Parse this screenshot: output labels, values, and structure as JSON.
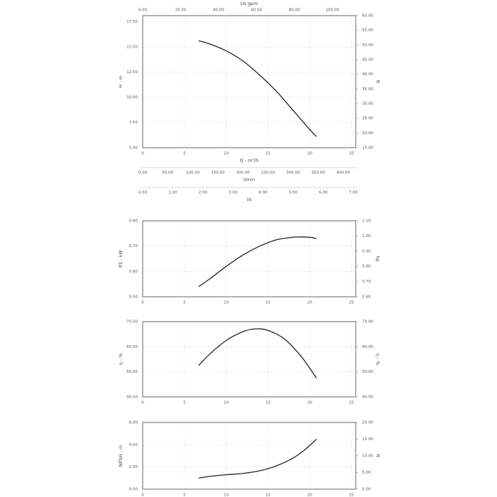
{
  "chart_data": [
    {
      "type": "line",
      "ylabel": "H - m",
      "y2label": "ft",
      "xlabel": "Q - m³/h",
      "x": [
        6.7,
        8,
        10,
        12,
        14,
        16,
        18,
        20,
        20.8
      ],
      "values": [
        15.6,
        15.3,
        14.6,
        13.6,
        12.2,
        10.6,
        8.7,
        6.8,
        6.1
      ],
      "color": "#222",
      "xlim": [
        0,
        25.5
      ],
      "xticks": [
        0,
        5,
        10,
        15,
        20,
        25
      ],
      "ylim": [
        5,
        18.1
      ],
      "yticks": [
        {
          "value": 5,
          "label": "5.00"
        },
        {
          "value": 7.5,
          "label": "7.50"
        },
        {
          "value": 10,
          "label": "10.00"
        },
        {
          "value": 12.5,
          "label": "12.50"
        },
        {
          "value": 15,
          "label": "15.00"
        },
        {
          "value": 17.5,
          "label": "17.50"
        }
      ],
      "y2lim": [
        15,
        60
      ],
      "y2ticks": [
        {
          "value": 15,
          "label": "15.00"
        },
        {
          "value": 20,
          "label": "20.00"
        },
        {
          "value": 25,
          "label": "25.00"
        },
        {
          "value": 30,
          "label": "30.00"
        },
        {
          "value": 35,
          "label": "35.00"
        },
        {
          "value": 40,
          "label": "40.00"
        },
        {
          "value": 45,
          "label": "45.00"
        },
        {
          "value": 50,
          "label": "50.00"
        },
        {
          "value": 55,
          "label": "55.00"
        },
        {
          "value": 60,
          "label": "60.00"
        }
      ],
      "x2label": "Us gpm",
      "x2lim": [
        0,
        112.3
      ],
      "x2ticks": [
        {
          "value": 0,
          "label": "0.00"
        },
        {
          "value": 20,
          "label": "20.00"
        },
        {
          "value": 40,
          "label": "40.00"
        },
        {
          "value": 60,
          "label": "60.00"
        },
        {
          "value": 80,
          "label": "80.00"
        },
        {
          "value": 100,
          "label": "100.00"
        }
      ],
      "extra_axes": [
        {
          "label": "l/min",
          "lim": [
            0,
            425
          ],
          "ticks": [
            {
              "value": 0,
              "label": "0.00"
            },
            {
              "value": 50,
              "label": "50.00"
            },
            {
              "value": 100,
              "label": "100.00"
            },
            {
              "value": 150,
              "label": "150.00"
            },
            {
              "value": 200,
              "label": "200.00"
            },
            {
              "value": 250,
              "label": "250.00"
            },
            {
              "value": 300,
              "label": "300.00"
            },
            {
              "value": 350,
              "label": "350.00"
            },
            {
              "value": 400,
              "label": "400.00"
            }
          ]
        },
        {
          "label": "l/s",
          "lim": [
            0,
            7.08
          ],
          "ticks": [
            {
              "value": 0,
              "label": "0.00"
            },
            {
              "value": 1,
              "label": "1.00"
            },
            {
              "value": 2,
              "label": "2.00"
            },
            {
              "value": 3,
              "label": "3.00"
            },
            {
              "value": 4,
              "label": "4.00"
            },
            {
              "value": 5,
              "label": "5.00"
            },
            {
              "value": 6,
              "label": "6.00"
            },
            {
              "value": 7,
              "label": "7.00"
            }
          ]
        }
      ]
    },
    {
      "type": "line",
      "ylabel": "P2 - kW",
      "y2label": "hp",
      "x": [
        6.7,
        8,
        10,
        12,
        14,
        16,
        18,
        19,
        20,
        20.8
      ],
      "values": [
        0.54,
        0.57,
        0.62,
        0.665,
        0.7,
        0.725,
        0.735,
        0.736,
        0.735,
        0.73
      ],
      "color": "#222",
      "xlim": [
        0,
        25.5
      ],
      "xticks": [
        0,
        5,
        10,
        15,
        20,
        25
      ],
      "ylim": [
        0.5,
        0.8
      ],
      "yticks": [
        {
          "value": 0.5,
          "label": "0.50"
        },
        {
          "value": 0.6,
          "label": "0.60"
        },
        {
          "value": 0.7,
          "label": "0.70"
        },
        {
          "value": 0.8,
          "label": "0.80"
        }
      ],
      "y2lim": [
        0.6,
        1.1
      ],
      "y2ticks": [
        {
          "value": 0.6,
          "label": "0.60"
        },
        {
          "value": 0.7,
          "label": "0.70"
        },
        {
          "value": 0.8,
          "label": "0.80"
        },
        {
          "value": 0.9,
          "label": "0.90"
        },
        {
          "value": 1.0,
          "label": "1.00"
        },
        {
          "value": 1.1,
          "label": "1.10"
        }
      ]
    },
    {
      "type": "line",
      "ylabel": "η - %",
      "y2label": "η - %",
      "x": [
        6.7,
        8,
        10,
        12,
        13.5,
        15,
        17,
        19,
        20.8
      ],
      "values": [
        52.5,
        57,
        62.5,
        66,
        67.1,
        66.5,
        63,
        56,
        47.5
      ],
      "color": "#222",
      "xlim": [
        0,
        25.5
      ],
      "xticks": [
        0,
        5,
        10,
        15,
        20,
        25
      ],
      "ylim": [
        40,
        70
      ],
      "yticks": [
        {
          "value": 40,
          "label": "40.00"
        },
        {
          "value": 50,
          "label": "50.00"
        },
        {
          "value": 60,
          "label": "60.00"
        },
        {
          "value": 70,
          "label": "70.00"
        }
      ],
      "y2lim": [
        40,
        70
      ],
      "y2ticks": [
        {
          "value": 40,
          "label": "40.00"
        },
        {
          "value": 50,
          "label": "50.00"
        },
        {
          "value": 60,
          "label": "60.00"
        },
        {
          "value": 70,
          "label": "70.00"
        }
      ]
    },
    {
      "type": "line",
      "ylabel": "NPSH - m",
      "y2label": "ft",
      "x": [
        6.7,
        8,
        10,
        12,
        14,
        16,
        18,
        19.5,
        20.8
      ],
      "values": [
        1.0,
        1.15,
        1.3,
        1.42,
        1.65,
        2.1,
        2.8,
        3.6,
        4.5
      ],
      "color": "#222",
      "xlim": [
        0,
        25.5
      ],
      "xticks": [
        0,
        5,
        10,
        15,
        20,
        25
      ],
      "ylim": [
        0,
        6
      ],
      "yticks": [
        {
          "value": 0,
          "label": "0.00"
        },
        {
          "value": 2,
          "label": "2.00"
        },
        {
          "value": 4,
          "label": "4.00"
        },
        {
          "value": 6,
          "label": "6.00"
        }
      ],
      "y2lim": [
        0,
        20
      ],
      "y2ticks": [
        {
          "value": 0,
          "label": "0.00"
        },
        {
          "value": 5,
          "label": "5.00"
        },
        {
          "value": 10,
          "label": "10.00"
        },
        {
          "value": 15,
          "label": "15.00"
        },
        {
          "value": 20,
          "label": "20.00"
        }
      ]
    }
  ]
}
